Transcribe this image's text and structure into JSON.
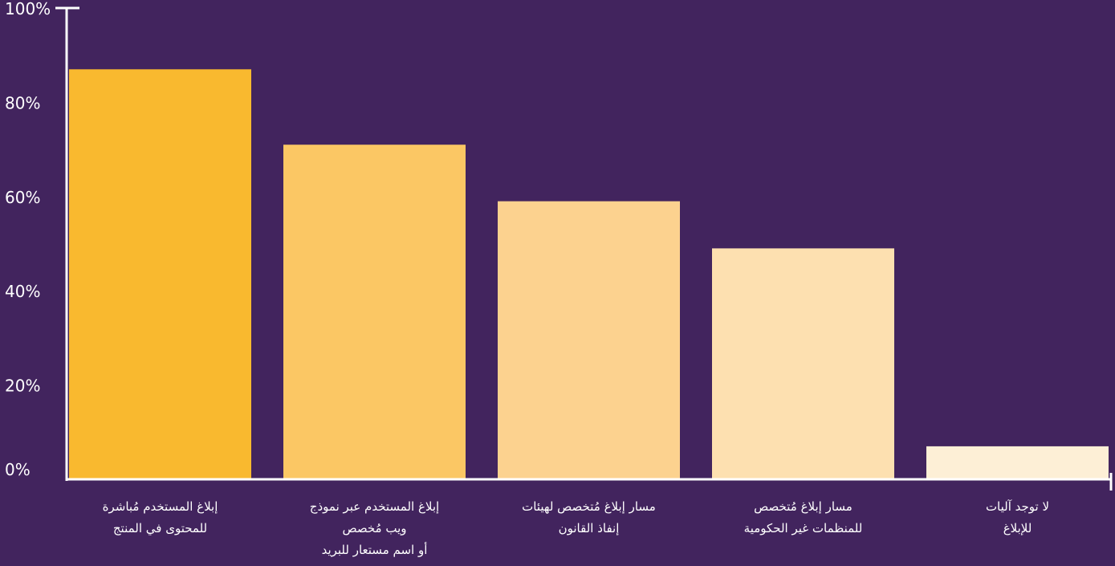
{
  "chart_data": {
    "type": "bar",
    "categories": [
      [
        "إبلاغ المستخدم مُباشرة",
        "للمحتوى في المنتج"
      ],
      [
        "إبلاغ المستخدم عبر نموذج",
        "ويب مُخصص",
        "أو اسم مستعار للبريد"
      ],
      [
        "مسار إبلاغ مُتخصص لهيئات",
        "إنفاذ القانون"
      ],
      [
        "مسار إبلاغ مُتخصص",
        "للمنظمات غير الحكومية"
      ],
      [
        "لا توجد آليات",
        "للإبلاغ"
      ]
    ],
    "values": [
      87,
      71,
      59,
      49,
      7
    ],
    "bar_colors": [
      "#f9b92f",
      "#fbc764",
      "#fcd28f",
      "#fde0b0",
      "#fdefd6"
    ],
    "yticks": [
      0,
      20,
      40,
      60,
      80,
      100
    ],
    "ytick_labels": [
      "0%",
      "20%",
      "40%",
      "60%",
      "80%",
      "100%"
    ],
    "ylim": [
      0,
      100
    ],
    "title": "",
    "xlabel": "",
    "ylabel": "",
    "grid": false,
    "legend": "none",
    "colors": {
      "background": "#42245e",
      "axis": "#ffffff",
      "text": "#ffffff"
    }
  }
}
